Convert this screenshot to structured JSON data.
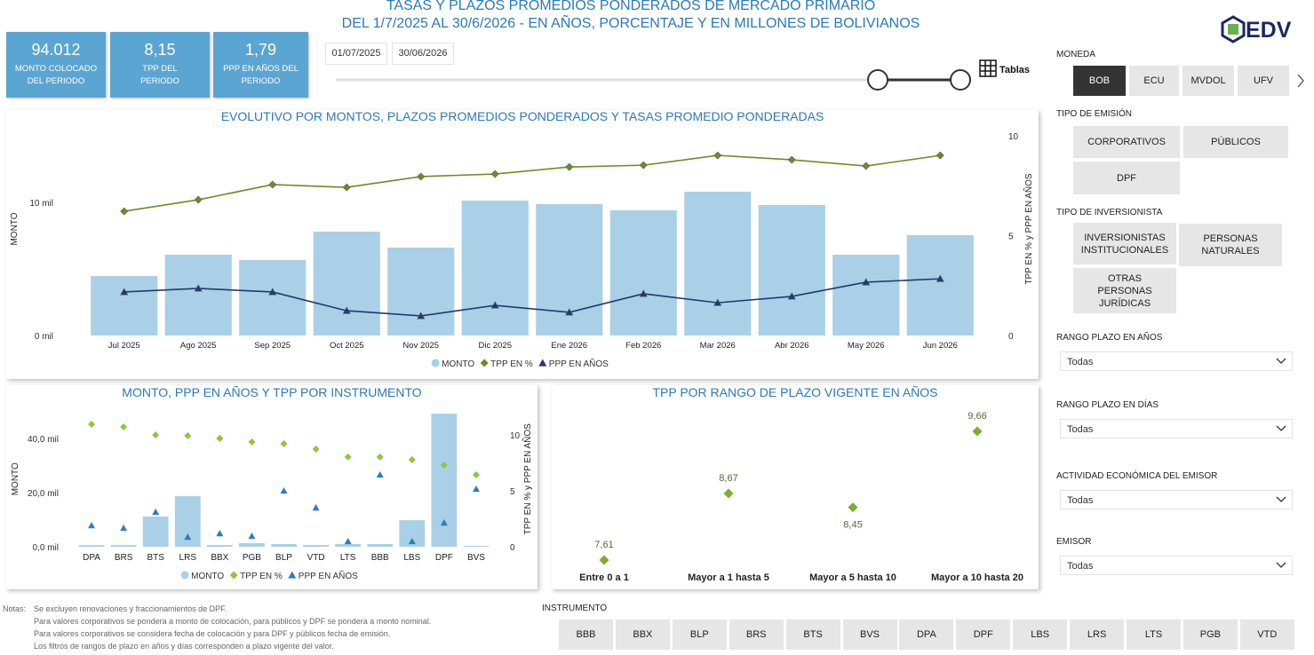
{
  "header": {
    "title_line1": "TASAS Y PLAZOS PROMEDIOS PONDERADOS DE MERCADO PRIMARIO",
    "title_line2": "DEL 1/7/2025 AL 30/6/2026 - EN AÑOS, PORCENTAJE Y EN MILLONES DE BOLIVIANOS"
  },
  "kpis": [
    {
      "value": "94.012",
      "label": "MONTO COLOCADO DEL PERIODO"
    },
    {
      "value": "8,15",
      "label": "TPP DEL PERIODO"
    },
    {
      "value": "1,79",
      "label": "PPP EN AÑOS DEL PERIODO"
    }
  ],
  "date_range": {
    "start": "01/07/2025",
    "end": "30/06/2026"
  },
  "tables_button": "Tablas",
  "logo": "EDV",
  "filters": {
    "moneda": {
      "label": "MONEDA",
      "options": [
        "BOB",
        "ECU",
        "MVDOL",
        "UFV"
      ]
    },
    "tipo_emision": {
      "label": "TIPO DE EMISIÓN",
      "options": [
        "CORPORATIVOS",
        "PÚBLICOS",
        "DPF"
      ]
    },
    "tipo_inversionista": {
      "label": "TIPO DE INVERSIONISTA",
      "options": [
        "INVERSIONISTAS INSTITUCIONALES",
        "PERSONAS NATURALES",
        "OTRAS PERSONAS JURÍDICAS"
      ]
    },
    "rango_anos": {
      "label": "RANGO PLAZO EN AÑOS",
      "value": "Todas"
    },
    "rango_dias": {
      "label": "RANGO PLAZO EN DÍAS",
      "value": "Todas"
    },
    "actividad": {
      "label": "ACTIVIDAD ECONÓMICA DEL EMISOR",
      "value": "Todas"
    },
    "emisor": {
      "label": "EMISOR",
      "value": "Todas"
    }
  },
  "chart_data": [
    {
      "type": "combo",
      "title": "EVOLUTIVO POR MONTOS, PLAZOS PROMEDIOS PONDERADOS Y TASAS PROMEDIO PONDERADAS",
      "y_label": "MONTO",
      "y2_label": "TPP EN % y PPP EN AÑOS",
      "categories": [
        "Jul 2025",
        "Ago 2025",
        "Sep 2025",
        "Oct 2025",
        "Nov 2025",
        "Dic 2025",
        "Ene 2026",
        "Feb 2026",
        "Mar 2026",
        "Abr 2026",
        "May 2026",
        "Jun 2026"
      ],
      "series": [
        {
          "name": "MONTO",
          "type": "bar",
          "color": "#a9d0e7",
          "values": [
            4470,
            6070,
            5670,
            7800,
            6600,
            10130,
            9870,
            9400,
            10800,
            9800,
            6070,
            7530
          ]
        },
        {
          "name": "TPP EN %",
          "type": "line",
          "marker": "diamond",
          "axis": "y2",
          "color": "#6b8e23",
          "values": [
            6.22,
            6.8,
            7.56,
            7.42,
            7.96,
            8.09,
            8.44,
            8.53,
            9.02,
            8.8,
            8.49,
            9.02
          ]
        },
        {
          "name": "PPP EN AÑOS",
          "type": "line",
          "marker": "triangle",
          "axis": "y2",
          "color": "#1f3a70",
          "values": [
            2.18,
            2.36,
            2.18,
            1.24,
            0.98,
            1.51,
            1.16,
            2.09,
            1.64,
            1.96,
            2.67,
            2.84
          ]
        }
      ],
      "ylim": [
        0,
        16000
      ],
      "yticks": [
        {
          "value": 0,
          "label": "0 mil"
        },
        {
          "value": 10000,
          "label": "10 mil"
        }
      ],
      "y2lim": [
        0,
        10.67
      ],
      "y2ticks": [
        0,
        5,
        10
      ],
      "grid": false,
      "legend": "bottom"
    },
    {
      "type": "combo",
      "title": "MONTO, PPP EN AÑOS Y TPP POR INSTRUMENTO",
      "y_label": "MONTO",
      "y2_label": "TPP EN % y PPP EN AÑOS",
      "categories": [
        "DPA",
        "BRS",
        "BTS",
        "LRS",
        "BBX",
        "PGB",
        "BLP",
        "VTD",
        "LTS",
        "BBB",
        "LBS",
        "DPF",
        "BVS"
      ],
      "series": [
        {
          "name": "MONTO",
          "type": "bar",
          "color": "#a9d0e7",
          "values": [
            600,
            600,
            11150,
            18700,
            650,
            1300,
            1000,
            650,
            1000,
            1000,
            9800,
            49180,
            330
          ]
        },
        {
          "name": "TPP EN %",
          "type": "scatter",
          "marker": "diamond",
          "axis": "y2",
          "color": "#8dc63f",
          "values": [
            10.95,
            10.71,
            10.0,
            9.92,
            9.68,
            9.37,
            9.2,
            8.73,
            8.02,
            8.02,
            7.78,
            7.3,
            6.43
          ]
        },
        {
          "name": "PPP EN AÑOS",
          "type": "scatter",
          "marker": "triangle",
          "axis": "y2",
          "color": "#2e7dbf",
          "values": [
            1.9,
            1.67,
            3.1,
            0.87,
            1.19,
            0.95,
            5.0,
            3.49,
            0.48,
            6.43,
            0.48,
            2.14,
            5.16
          ]
        }
      ],
      "ylim": [
        0,
        50000
      ],
      "yticks": [
        {
          "value": 0,
          "label": "0,0 mil"
        },
        {
          "value": 20000,
          "label": "20,0 mil"
        },
        {
          "value": 40000,
          "label": "40,0 mil"
        }
      ],
      "y2lim": [
        0,
        12.1
      ],
      "y2ticks": [
        0,
        5,
        10
      ],
      "grid": false,
      "legend": "bottom"
    },
    {
      "type": "scatter",
      "title": "TPP POR RANGO DE PLAZO VIGENTE EN AÑOS",
      "categories": [
        "Entre 0 a 1",
        "Mayor a 1 hasta 5",
        "Mayor a 5 hasta 10",
        "Mayor a 10 hasta 20"
      ],
      "values": [
        7.61,
        8.67,
        8.45,
        9.66
      ],
      "value_labels": [
        "7,61",
        "8,67",
        "8,45",
        "9,66"
      ],
      "color": "#7cad2e",
      "marker": "diamond"
    }
  ],
  "notes": {
    "label": "Notas:",
    "lines": [
      "Se excluyen renovaciones y fraccionamientos de DPF.",
      "Para valores corporativos se pondera a monto de colocación, para públicos y DPF se pondera a monto nominal.",
      "Para valores corporativos se considera fecha de colocación y para DPF y públicos fecha de emisión.",
      "Los filtros de rangos de plazo en años y días corresponden a plazo vigente del valor."
    ]
  },
  "instrumento": {
    "label": "INSTRUMENTO",
    "options": [
      "BBB",
      "BBX",
      "BLP",
      "BRS",
      "BTS",
      "BVS",
      "DPA",
      "DPF",
      "LBS",
      "LRS",
      "LTS",
      "PGB",
      "VTD"
    ]
  }
}
